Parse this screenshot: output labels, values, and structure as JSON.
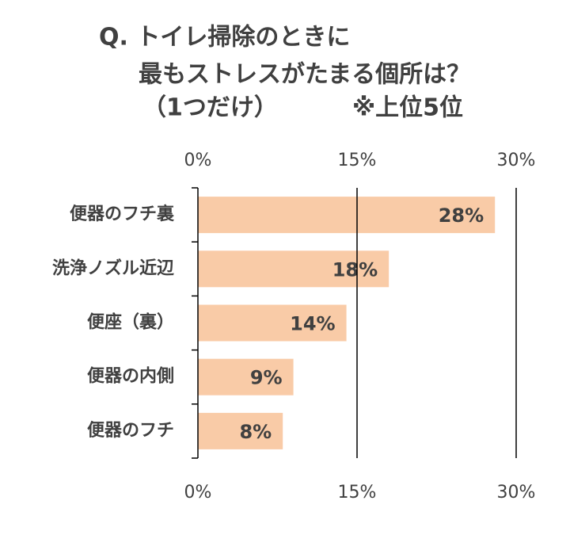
{
  "chart_data": {
    "type": "bar",
    "orientation": "horizontal",
    "title": [
      "Q. トイレ掃除のときに",
      "最もストレスがたまる個所は？",
      "（1つだけ）"
    ],
    "note": "※上位5位",
    "categories": [
      "便器のフチ裏",
      "洗浄ノズル近辺",
      "便座（裏）",
      "便器の内側",
      "便器のフチ"
    ],
    "values": [
      28,
      18,
      14,
      9,
      8
    ],
    "value_labels": [
      "28%",
      "18%",
      "14%",
      "9%",
      "8%"
    ],
    "color": "#f9cba7",
    "xlim": [
      0,
      30
    ],
    "xticks": [
      {
        "value": 0,
        "label": "0%"
      },
      {
        "value": 15,
        "label": "15%"
      },
      {
        "value": 30,
        "label": "30%"
      }
    ],
    "grid": true
  }
}
